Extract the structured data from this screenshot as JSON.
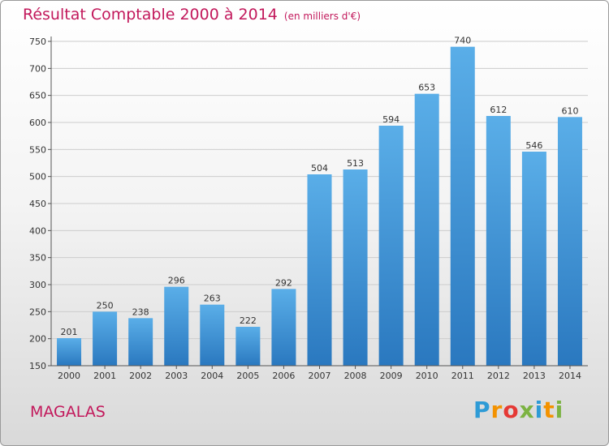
{
  "title": "Résultat Comptable 2000 à 2014",
  "subtitle": "(en milliers d'€)",
  "town": "MAGALAS",
  "logo": {
    "text": "Proxiti",
    "letters": [
      {
        "ch": "P",
        "color": "#2e9bd6"
      },
      {
        "ch": "r",
        "color": "#f39200"
      },
      {
        "ch": "o",
        "color": "#e53935"
      },
      {
        "ch": "x",
        "color": "#7cb342"
      },
      {
        "ch": "i",
        "color": "#2e9bd6"
      },
      {
        "ch": "t",
        "color": "#f39200"
      },
      {
        "ch": "i",
        "color": "#7cb342"
      }
    ]
  },
  "colors": {
    "title": "#c2185b",
    "bar_top": "#5aaee8",
    "bar_bottom": "#2a78bf",
    "grid": "#cccccc"
  },
  "chart_data": {
    "type": "bar",
    "categories": [
      "2000",
      "2001",
      "2002",
      "2003",
      "2004",
      "2005",
      "2006",
      "2007",
      "2008",
      "2009",
      "2010",
      "2011",
      "2012",
      "2013",
      "2014"
    ],
    "values": [
      201,
      250,
      238,
      296,
      263,
      222,
      292,
      504,
      513,
      594,
      653,
      740,
      612,
      546,
      610
    ],
    "ylim": [
      150,
      750
    ],
    "yticks": [
      150,
      200,
      250,
      300,
      350,
      400,
      450,
      500,
      550,
      600,
      650,
      700,
      750
    ],
    "grid": true,
    "legend": "none"
  }
}
